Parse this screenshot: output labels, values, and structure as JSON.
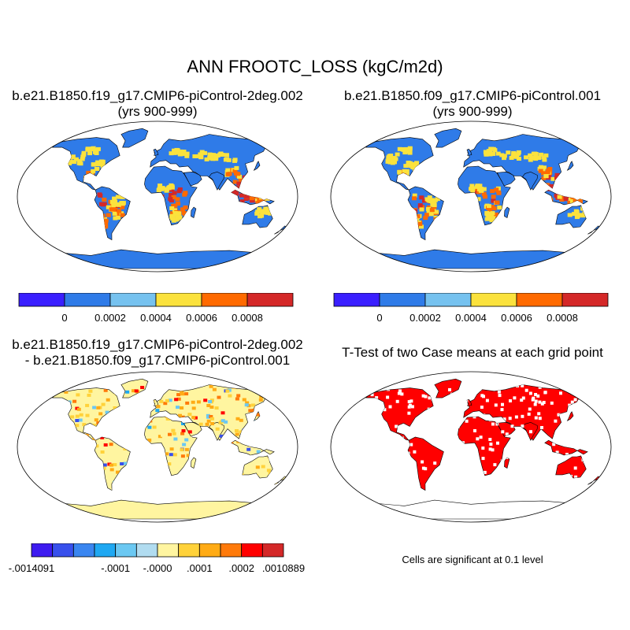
{
  "title": "ANN FROOTC_LOSS (kgC/m2d)",
  "panels": [
    {
      "id": "case1",
      "title_line1": "b.e21.B1850.f19_g17.CMIP6-piControl-2deg.002",
      "title_line2": "(yrs 900-999)"
    },
    {
      "id": "case2",
      "title_line1": "b.e21.B1850.f09_g17.CMIP6-piControl.001",
      "title_line2": "(yrs 900-999)"
    },
    {
      "id": "diff",
      "title_line1": "b.e21.B1850.f19_g17.CMIP6-piControl-2deg.002",
      "title_line2": "- b.e21.B1850.f09_g17.CMIP6-piControl.001"
    },
    {
      "id": "ttest",
      "title_line1": "T-Test of two Case means at each grid point",
      "title_line2": ""
    }
  ],
  "colorbar_case": {
    "colors": [
      "#3a1fff",
      "#2f7be8",
      "#76c2ef",
      "#fbe23d",
      "#ff6a00",
      "#d42828"
    ],
    "labels": [
      "0",
      "0.0002",
      "0.0004",
      "0.0006",
      "0.0008"
    ]
  },
  "colorbar_diff": {
    "colors": [
      "#3e1cf0",
      "#3850ec",
      "#3a86f0",
      "#1fa8f2",
      "#6bc8f2",
      "#b1dcf0",
      "#fff5a0",
      "#ffd23a",
      "#ffab15",
      "#ff7a0a",
      "#ff0000",
      "#d42828"
    ],
    "labels": [
      "-.0014091",
      "-.0001",
      "-.0000",
      ".0001",
      ".0002",
      ".0010889"
    ]
  },
  "significance_note": "Cells are significant at 0.1 level",
  "map_style": {
    "ocean": "#ffffff",
    "outline": "#000000",
    "case_land": "#2f7be8",
    "case_hot": [
      "#fbe23d",
      "#ff6a00",
      "#d42828"
    ],
    "diff_land": "#fff5a0",
    "ttest_land": "#ff0000"
  }
}
